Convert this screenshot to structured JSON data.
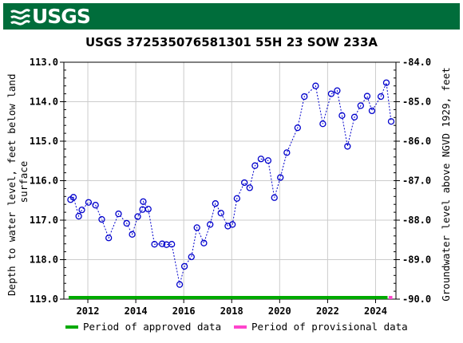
{
  "header": {
    "agency_logo_text": "USGS"
  },
  "colors": {
    "banner": "#006d3b",
    "series": "#0000cc",
    "approved": "#00aa00",
    "provisional": "#ff44cc",
    "grid": "#cccccc"
  },
  "chart_data": {
    "type": "scatter",
    "title": "USGS 372535076581301 55H 23 SOW 233A",
    "ylabel_left": "Depth to water level, feet below land surface",
    "ylabel_left_lines": [
      "Depth to water level, feet below land",
      "surface"
    ],
    "ylabel_right": "Groundwater level above NGVD 1929, feet",
    "ylim_left": [
      113.0,
      119.0
    ],
    "ylim_right": [
      -84.0,
      -90.0
    ],
    "xlim": [
      2011.0,
      2024.85
    ],
    "y_ticks_left": [
      "113.0",
      "114.0",
      "115.0",
      "116.0",
      "117.0",
      "118.0",
      "119.0"
    ],
    "y_ticks_right": [
      "-84.0",
      "-85.0",
      "-86.0",
      "-87.0",
      "-88.0",
      "-89.0",
      "-90.0"
    ],
    "x_ticks": [
      "2012",
      "2014",
      "2016",
      "2018",
      "2020",
      "2022",
      "2024"
    ],
    "grid": true,
    "legend_placement": "bottom",
    "series": [
      {
        "x": [
          2011.28,
          2011.4,
          2011.62,
          2011.75,
          2012.03,
          2012.32,
          2012.58,
          2012.87,
          2013.28,
          2013.62,
          2013.85,
          2014.08,
          2014.28,
          2014.31,
          2014.52,
          2014.78,
          2015.1,
          2015.28,
          2015.5,
          2015.83,
          2016.03,
          2016.32,
          2016.55,
          2016.84,
          2017.1,
          2017.32,
          2017.55,
          2017.84,
          2018.03,
          2018.22,
          2018.53,
          2018.75,
          2018.97,
          2019.22,
          2019.52,
          2019.78,
          2020.03,
          2020.3,
          2020.75,
          2021.03,
          2021.5,
          2021.8,
          2022.15,
          2022.4,
          2022.6,
          2022.83,
          2023.12,
          2023.38,
          2023.65,
          2023.85,
          2024.22,
          2024.45,
          2024.65
        ],
        "y": [
          116.48,
          116.42,
          116.9,
          116.74,
          116.55,
          116.62,
          116.98,
          117.45,
          116.84,
          117.08,
          117.36,
          116.91,
          116.73,
          116.53,
          116.72,
          117.61,
          117.6,
          117.62,
          117.61,
          118.63,
          118.17,
          117.93,
          117.19,
          117.58,
          117.11,
          116.58,
          116.82,
          117.15,
          117.11,
          116.45,
          116.05,
          116.18,
          115.62,
          115.45,
          115.49,
          116.43,
          115.92,
          115.29,
          114.66,
          113.87,
          113.6,
          114.56,
          113.8,
          113.72,
          114.35,
          115.13,
          114.39,
          114.1,
          113.86,
          114.23,
          113.87,
          113.52,
          114.5
        ]
      }
    ],
    "periods": [
      {
        "name": "Period of approved data",
        "start": 2011.2,
        "end": 2024.5
      },
      {
        "name": "Period of provisional data",
        "start": 2024.55,
        "end": 2024.7
      }
    ]
  }
}
